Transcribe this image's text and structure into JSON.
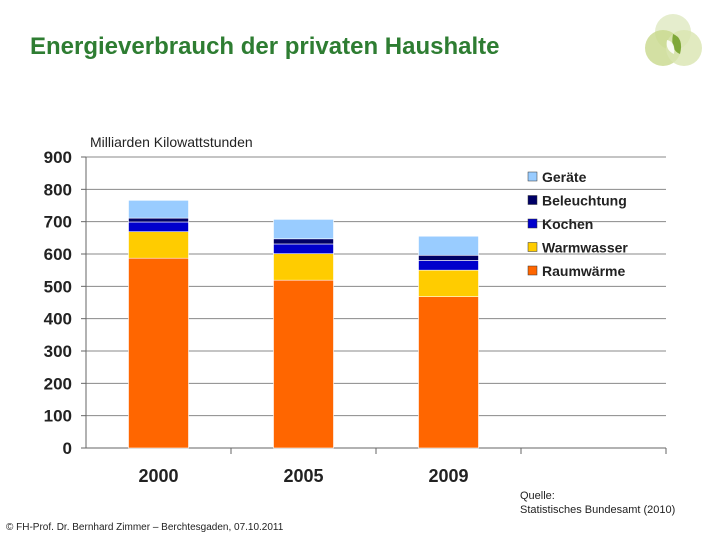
{
  "page": {
    "title": "Energieverbrauch der privaten Haushalte",
    "footer": "© FH-Prof. Dr. Bernhard Zimmer  –  Berchtesgaden, 07.10.2011",
    "source_line1": "Quelle:",
    "source_line2": "Statistisches Bundesamt (2010)"
  },
  "logo": {
    "icon": "leaf-circles-logo",
    "colors": [
      "#c8d88c",
      "#7fa83a",
      "#e2ebc8"
    ]
  },
  "chart_data": {
    "type": "bar",
    "stacked": true,
    "ylabel": "Milliarden Kilowattstunden",
    "xlabel": "",
    "categories": [
      "2000",
      "2005",
      "2009"
    ],
    "ylim": [
      0,
      900
    ],
    "yticks": [
      0,
      100,
      200,
      300,
      400,
      500,
      600,
      700,
      800,
      900
    ],
    "grid": true,
    "legend_position": "top-right",
    "series": [
      {
        "name": "Raumwärme",
        "color": "#ff6600",
        "values": [
          587,
          519,
          468
        ]
      },
      {
        "name": "Warmwasser",
        "color": "#ffcc00",
        "values": [
          82,
          82,
          82
        ]
      },
      {
        "name": "Kochen",
        "color": "#0000cc",
        "values": [
          30,
          30,
          30
        ]
      },
      {
        "name": "Beleuchtung",
        "color": "#000066",
        "values": [
          12,
          16,
          16
        ]
      },
      {
        "name": "Geräte",
        "color": "#99ccff",
        "values": [
          55,
          60,
          59
        ]
      }
    ],
    "legend_order": [
      "Geräte",
      "Beleuchtung",
      "Kochen",
      "Warmwasser",
      "Raumwärme"
    ]
  }
}
